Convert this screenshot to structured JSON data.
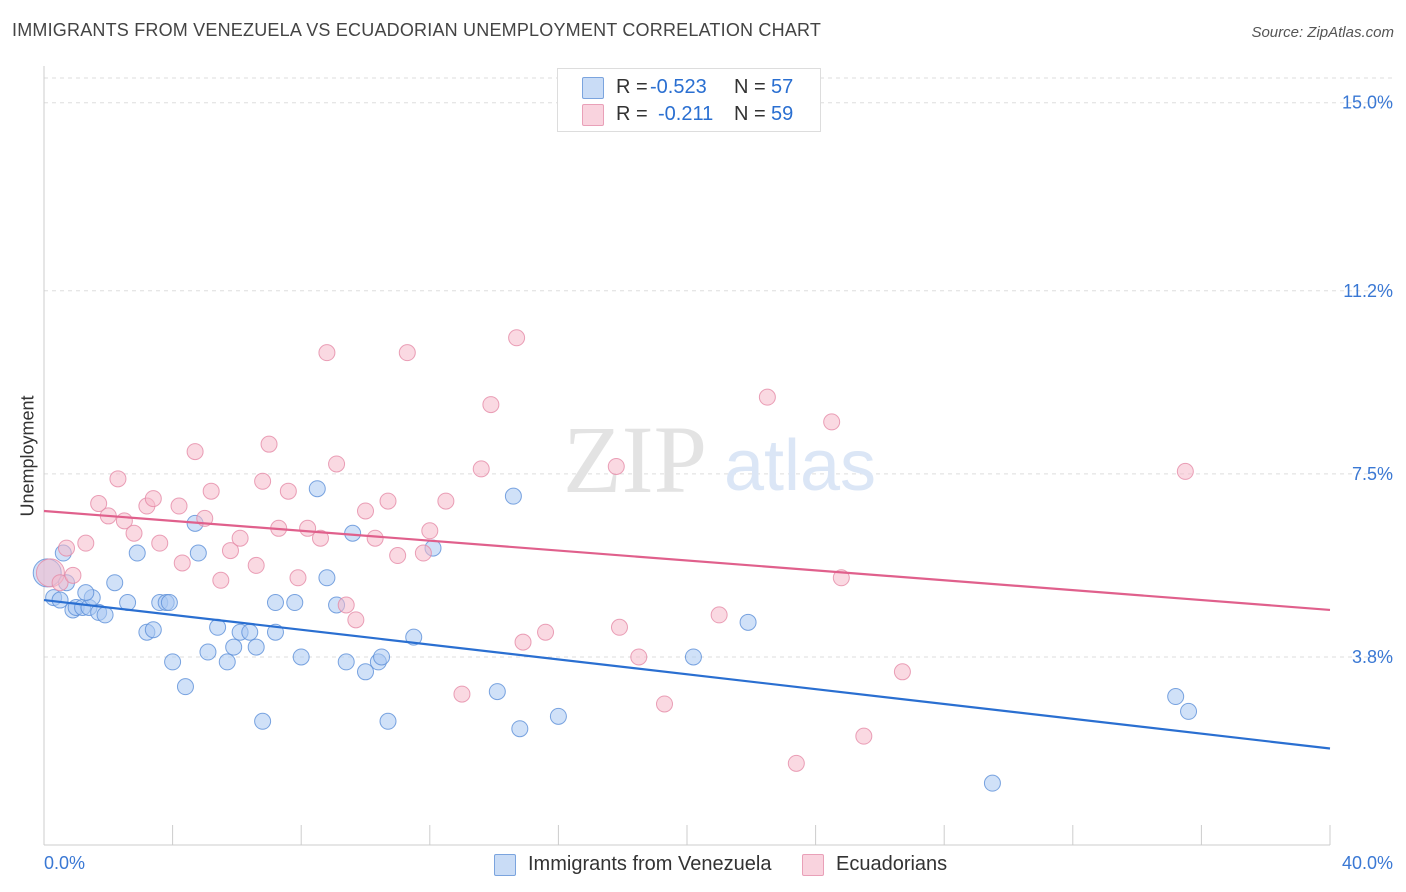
{
  "header": {
    "title": "IMMIGRANTS FROM VENEZUELA VS ECUADORIAN UNEMPLOYMENT CORRELATION CHART",
    "source": "Source: ZipAtlas.com"
  },
  "legend": {
    "rows": [
      {
        "r_label": "R =",
        "r_value": "-0.523",
        "n_label": "N =",
        "n_value": "57",
        "color": "#a9c8f2"
      },
      {
        "r_label": "R =",
        "r_value": "-0.211",
        "n_label": "N =",
        "n_value": "59",
        "color": "#f6b9cb"
      }
    ]
  },
  "watermark": {
    "zip": "ZIP",
    "atlas": "atlas"
  },
  "colors": {
    "blue_fill": "#a9c8f2",
    "blue_stroke": "#5b8fd8",
    "blue_line": "#2a6fd1",
    "pink_fill": "#f6b9cb",
    "pink_stroke": "#e58aa6",
    "pink_line": "#e0608c",
    "axis_text": "#3a78d4"
  },
  "chart_data": {
    "type": "scatter",
    "title": "IMMIGRANTS FROM VENEZUELA VS ECUADORIAN UNEMPLOYMENT CORRELATION CHART",
    "xlabel": "",
    "ylabel": "Unemployment",
    "xlim": [
      0,
      40
    ],
    "ylim": [
      0,
      15.5
    ],
    "x_tick_labels": [
      "0.0%",
      "40.0%"
    ],
    "y_ticks": [
      3.8,
      7.5,
      11.2,
      15.0
    ],
    "y_tick_labels": [
      "3.8%",
      "7.5%",
      "11.2%",
      "15.0%"
    ],
    "grid": "horizontal dashed",
    "legend_position": "top-center",
    "series": [
      {
        "name": "Immigrants from Venezuela",
        "color": "#a9c8f2",
        "r": -0.523,
        "n": 57,
        "trend": {
          "x": [
            0,
            40
          ],
          "y": [
            4.95,
            1.95
          ]
        },
        "points": [
          [
            0.1,
            5.5
          ],
          [
            0.3,
            5.0
          ],
          [
            0.5,
            4.95
          ],
          [
            0.7,
            5.3
          ],
          [
            0.9,
            4.75
          ],
          [
            1.0,
            4.8
          ],
          [
            1.2,
            4.8
          ],
          [
            1.4,
            4.8
          ],
          [
            1.5,
            5.0
          ],
          [
            1.7,
            4.7
          ],
          [
            1.9,
            4.65
          ],
          [
            2.2,
            5.3
          ],
          [
            2.6,
            4.9
          ],
          [
            2.9,
            5.9
          ],
          [
            3.2,
            4.3
          ],
          [
            3.6,
            4.9
          ],
          [
            3.8,
            4.9
          ],
          [
            3.9,
            4.9
          ],
          [
            4.0,
            3.7
          ],
          [
            4.4,
            3.2
          ],
          [
            4.7,
            6.5
          ],
          [
            4.8,
            5.9
          ],
          [
            5.1,
            3.9
          ],
          [
            5.4,
            4.4
          ],
          [
            5.7,
            3.7
          ],
          [
            5.9,
            4.0
          ],
          [
            6.1,
            4.3
          ],
          [
            6.4,
            4.3
          ],
          [
            6.6,
            4.0
          ],
          [
            6.8,
            2.5
          ],
          [
            7.2,
            4.9
          ],
          [
            7.2,
            4.3
          ],
          [
            7.8,
            4.9
          ],
          [
            8.0,
            3.8
          ],
          [
            8.5,
            7.2
          ],
          [
            8.8,
            5.4
          ],
          [
            9.1,
            4.85
          ],
          [
            9.4,
            3.7
          ],
          [
            9.6,
            6.3
          ],
          [
            10.0,
            3.5
          ],
          [
            10.4,
            3.7
          ],
          [
            10.5,
            3.8
          ],
          [
            10.7,
            2.5
          ],
          [
            11.5,
            4.2
          ],
          [
            14.1,
            3.1
          ],
          [
            14.6,
            7.05
          ],
          [
            14.8,
            2.35
          ],
          [
            16.0,
            2.6
          ],
          [
            20.2,
            3.8
          ],
          [
            29.5,
            1.25
          ],
          [
            35.2,
            3.0
          ],
          [
            35.6,
            2.7
          ],
          [
            0.6,
            5.9
          ],
          [
            1.3,
            5.1
          ],
          [
            3.4,
            4.35
          ],
          [
            12.1,
            6.0
          ],
          [
            21.9,
            4.5
          ]
        ]
      },
      {
        "name": "Ecuadorians",
        "color": "#f6b9cb",
        "r": -0.211,
        "n": 59,
        "trend": {
          "x": [
            0,
            40
          ],
          "y": [
            6.75,
            4.75
          ]
        },
        "points": [
          [
            0.2,
            5.5
          ],
          [
            0.5,
            5.3
          ],
          [
            0.7,
            6.0
          ],
          [
            0.9,
            5.45
          ],
          [
            1.3,
            6.1
          ],
          [
            1.7,
            6.9
          ],
          [
            2.0,
            6.65
          ],
          [
            2.3,
            7.4
          ],
          [
            2.5,
            6.55
          ],
          [
            2.8,
            6.3
          ],
          [
            3.2,
            6.85
          ],
          [
            3.4,
            7.0
          ],
          [
            3.6,
            6.1
          ],
          [
            4.2,
            6.85
          ],
          [
            4.3,
            5.7
          ],
          [
            4.7,
            7.95
          ],
          [
            5.0,
            6.6
          ],
          [
            5.2,
            7.15
          ],
          [
            5.5,
            5.35
          ],
          [
            5.8,
            5.95
          ],
          [
            6.1,
            6.2
          ],
          [
            6.6,
            5.65
          ],
          [
            6.8,
            7.35
          ],
          [
            7.0,
            8.1
          ],
          [
            7.3,
            6.4
          ],
          [
            7.6,
            7.15
          ],
          [
            7.9,
            5.4
          ],
          [
            8.2,
            6.4
          ],
          [
            8.6,
            6.2
          ],
          [
            8.8,
            9.95
          ],
          [
            9.1,
            7.7
          ],
          [
            9.4,
            4.85
          ],
          [
            9.7,
            4.55
          ],
          [
            10.0,
            6.75
          ],
          [
            10.3,
            6.2
          ],
          [
            10.7,
            6.95
          ],
          [
            11.0,
            5.85
          ],
          [
            11.3,
            9.95
          ],
          [
            11.8,
            5.9
          ],
          [
            12.0,
            6.35
          ],
          [
            12.5,
            6.95
          ],
          [
            13.0,
            3.05
          ],
          [
            13.6,
            7.6
          ],
          [
            13.9,
            8.9
          ],
          [
            14.7,
            10.25
          ],
          [
            14.9,
            4.1
          ],
          [
            15.6,
            4.3
          ],
          [
            17.8,
            7.65
          ],
          [
            17.9,
            4.4
          ],
          [
            18.5,
            3.8
          ],
          [
            19.3,
            2.85
          ],
          [
            21.0,
            4.65
          ],
          [
            22.5,
            9.05
          ],
          [
            23.4,
            1.65
          ],
          [
            24.5,
            8.55
          ],
          [
            24.8,
            5.4
          ],
          [
            25.5,
            2.2
          ],
          [
            26.7,
            3.5
          ],
          [
            35.5,
            7.55
          ]
        ]
      }
    ]
  },
  "bottom_legend": {
    "items": [
      {
        "label": "Immigrants from Venezuela",
        "color": "#a9c8f2"
      },
      {
        "label": "Ecuadorians",
        "color": "#f6b9cb"
      }
    ]
  }
}
